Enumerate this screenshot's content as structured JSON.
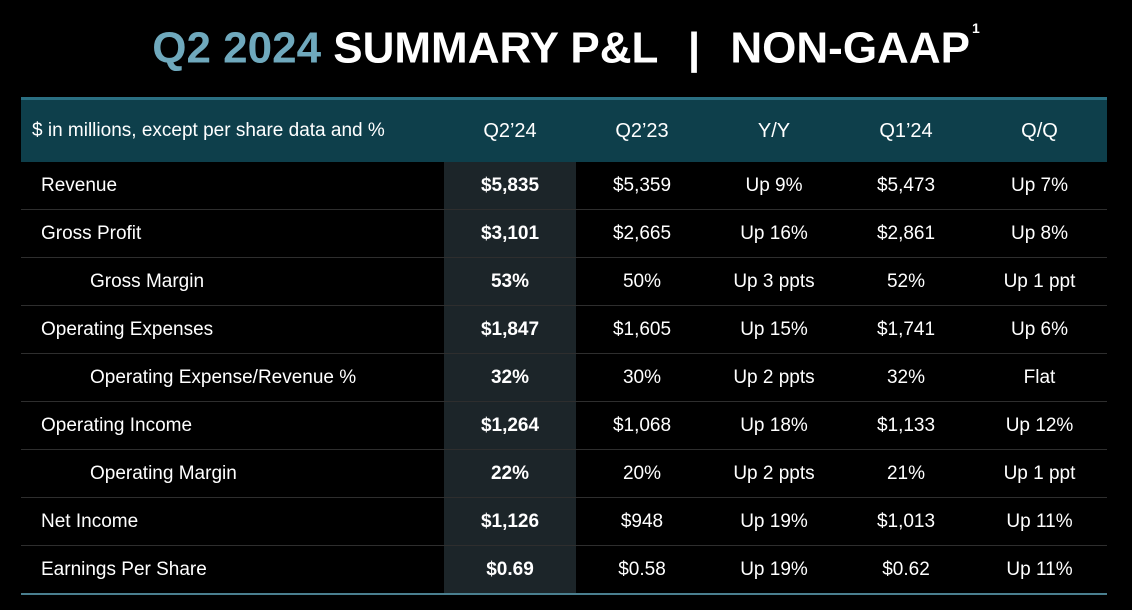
{
  "title": {
    "accent": "Q2 2024",
    "main": "SUMMARY P&L",
    "separator": "|",
    "suffix": "NON-GAAP",
    "footnote": "1"
  },
  "table": {
    "headers": [
      "$ in millions, except per share data and %",
      "Q2’24",
      "Q2’23",
      "Y/Y",
      "Q1’24",
      "Q/Q"
    ],
    "rows": [
      {
        "label": "Revenue",
        "indent": false,
        "values": [
          "$5,835",
          "$5,359",
          "Up 9%",
          "$5,473",
          "Up 7%"
        ]
      },
      {
        "label": "Gross Profit",
        "indent": false,
        "values": [
          "$3,101",
          "$2,665",
          "Up 16%",
          "$2,861",
          "Up 8%"
        ]
      },
      {
        "label": "Gross Margin",
        "indent": true,
        "values": [
          "53%",
          "50%",
          "Up 3 ppts",
          "52%",
          "Up 1 ppt"
        ]
      },
      {
        "label": "Operating Expenses",
        "indent": false,
        "values": [
          "$1,847",
          "$1,605",
          "Up 15%",
          "$1,741",
          "Up 6%"
        ]
      },
      {
        "label": "Operating Expense/Revenue %",
        "indent": true,
        "values": [
          "32%",
          "30%",
          "Up 2 ppts",
          "32%",
          "Flat"
        ]
      },
      {
        "label": "Operating Income",
        "indent": false,
        "values": [
          "$1,264",
          "$1,068",
          "Up 18%",
          "$1,133",
          "Up 12%"
        ]
      },
      {
        "label": "Operating Margin",
        "indent": true,
        "values": [
          "22%",
          "20%",
          "Up 2 ppts",
          "21%",
          "Up 1 ppt"
        ]
      },
      {
        "label": "Net Income",
        "indent": false,
        "values": [
          "$1,126",
          "$948",
          "Up 19%",
          "$1,013",
          "Up 11%"
        ]
      },
      {
        "label": "Earnings Per Share",
        "indent": false,
        "values": [
          "$0.69",
          "$0.58",
          "Up 19%",
          "$0.62",
          "Up 11%"
        ]
      }
    ]
  },
  "colors": {
    "accent": "#6fa9bd",
    "header_bg": "#0e3f4b",
    "highlight_col_bg": "#1c2529",
    "background": "#000000"
  }
}
